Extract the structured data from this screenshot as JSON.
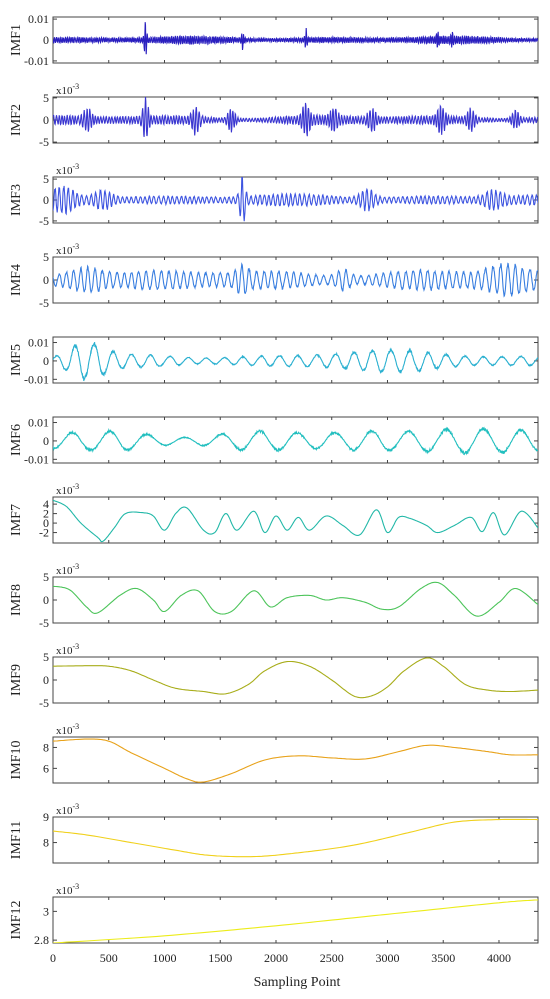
{
  "xlabel": "Sampling Point",
  "xticks": [
    0,
    500,
    1000,
    1500,
    2000,
    2500,
    3000,
    3500,
    4000
  ],
  "xlim": [
    0,
    4350
  ],
  "chart_data": [
    {
      "type": "line",
      "ylabel": "IMF1",
      "scale_label": "",
      "ylim": [
        -0.011,
        0.011
      ],
      "yticks": [
        -0.01,
        0,
        0.01
      ],
      "ytick_labels": [
        "-0.01",
        "0",
        "0.01"
      ],
      "color": "#2a1fbf",
      "signal": {
        "kind": "noise",
        "amp": 0.0017,
        "freq": 0.12,
        "bursts": [
          [
            830,
            0.0095,
            12
          ],
          [
            1700,
            0.004,
            12
          ],
          [
            2270,
            0.0048,
            12
          ],
          [
            3450,
            0.003,
            12
          ],
          [
            3580,
            0.0025,
            12
          ]
        ]
      }
    },
    {
      "type": "line",
      "ylabel": "IMF2",
      "scale_label": "x10",
      "scale_exp": "-3",
      "ylim": [
        -5.2,
        5.2
      ],
      "yticks": [
        -5,
        0,
        5
      ],
      "ytick_labels": [
        "-5",
        "0",
        "5"
      ],
      "color": "#3a36d0",
      "signal": {
        "kind": "noise",
        "amp": 1.0,
        "freq": 0.08,
        "bursts": [
          [
            830,
            4.5,
            30
          ],
          [
            310,
            2.2,
            40
          ],
          [
            1280,
            2.8,
            40
          ],
          [
            1600,
            2.6,
            40
          ],
          [
            2270,
            3.2,
            40
          ],
          [
            2520,
            2.2,
            40
          ],
          [
            2860,
            2.4,
            40
          ],
          [
            3480,
            2.8,
            40
          ],
          [
            3750,
            2.4,
            40
          ],
          [
            4150,
            2.0,
            40
          ]
        ]
      }
    },
    {
      "type": "line",
      "ylabel": "IMF3",
      "scale_label": "x10",
      "scale_exp": "-3",
      "ylim": [
        -5.5,
        5.5
      ],
      "yticks": [
        -5,
        0,
        5
      ],
      "ytick_labels": [
        "-5",
        "0",
        "5"
      ],
      "color": "#3d54e0",
      "signal": {
        "kind": "noise",
        "amp": 1.2,
        "freq": 0.05,
        "bursts": [
          [
            1700,
            5.5,
            30
          ],
          [
            100,
            2.5,
            120
          ],
          [
            450,
            2.0,
            100
          ],
          [
            2820,
            2.2,
            80
          ],
          [
            3950,
            1.8,
            100
          ]
        ]
      }
    },
    {
      "type": "line",
      "ylabel": "IMF4",
      "scale_label": "x10",
      "scale_exp": "-3",
      "ylim": [
        -5,
        5
      ],
      "yticks": [
        -5,
        0,
        5
      ],
      "ytick_labels": [
        "-5",
        "0",
        "5"
      ],
      "color": "#3a7fe0",
      "signal": {
        "kind": "noise",
        "amp": 2.0,
        "freq": 0.03,
        "bursts": [
          [
            300,
            2.2,
            200
          ],
          [
            1700,
            2.0,
            60
          ],
          [
            2600,
            1.8,
            80
          ],
          [
            4050,
            2.0,
            200
          ]
        ]
      }
    },
    {
      "type": "line",
      "ylabel": "IMF5",
      "scale_label": "",
      "ylim": [
        -0.012,
        0.013
      ],
      "yticks": [
        -0.01,
        0,
        0.01
      ],
      "ytick_labels": [
        "-0.01",
        "0",
        "0.01"
      ],
      "color": "#2ab0d0",
      "signal": {
        "kind": "noise",
        "amp": 0.003,
        "freq": 0.012,
        "bursts": [
          [
            300,
            0.009,
            200
          ],
          [
            2950,
            0.003,
            800
          ]
        ]
      }
    },
    {
      "type": "line",
      "ylabel": "IMF6",
      "scale_label": "",
      "ylim": [
        -0.012,
        0.013
      ],
      "yticks": [
        -0.01,
        0,
        0.01
      ],
      "ytick_labels": [
        "-0.01",
        "0",
        "0.01"
      ],
      "color": "#22bfbf",
      "signal": {
        "kind": "noise",
        "amp": 0.0055,
        "freq": 0.006,
        "bursts": [
          [
            3600,
            0.005,
            400
          ]
        ]
      }
    },
    {
      "type": "line",
      "ylabel": "IMF7",
      "scale_label": "x10",
      "scale_exp": "-3",
      "ylim": [
        -4.2,
        5.5
      ],
      "yticks": [
        -2,
        0,
        2,
        4
      ],
      "ytick_labels": [
        "-2",
        "0",
        "2",
        "4"
      ],
      "color": "#22b8a8",
      "signal": {
        "kind": "points",
        "points": [
          [
            0,
            4.8
          ],
          [
            120,
            3.5
          ],
          [
            250,
            0
          ],
          [
            400,
            -3
          ],
          [
            450,
            -3.8
          ],
          [
            550,
            -1
          ],
          [
            650,
            2
          ],
          [
            800,
            2.2
          ],
          [
            900,
            1.5
          ],
          [
            1000,
            -1.5
          ],
          [
            1100,
            2
          ],
          [
            1200,
            3.2
          ],
          [
            1350,
            -1.5
          ],
          [
            1450,
            -2
          ],
          [
            1550,
            2
          ],
          [
            1650,
            -1.5
          ],
          [
            1800,
            2.5
          ],
          [
            1900,
            -2
          ],
          [
            2000,
            1.5
          ],
          [
            2100,
            -1.5
          ],
          [
            2200,
            1.2
          ],
          [
            2300,
            -1.5
          ],
          [
            2450,
            1.5
          ],
          [
            2600,
            -0.5
          ],
          [
            2750,
            -2.5
          ],
          [
            2900,
            2.8
          ],
          [
            3000,
            -2
          ],
          [
            3100,
            1.2
          ],
          [
            3200,
            1.0
          ],
          [
            3350,
            -0.5
          ],
          [
            3450,
            -2
          ],
          [
            3600,
            -0.5
          ],
          [
            3750,
            1.2
          ],
          [
            3850,
            -1.8
          ],
          [
            3950,
            2.2
          ],
          [
            4050,
            -2.5
          ],
          [
            4200,
            2.5
          ],
          [
            4350,
            -1
          ]
        ]
      }
    },
    {
      "type": "line",
      "ylabel": "IMF8",
      "scale_label": "x10",
      "scale_exp": "-3",
      "ylim": [
        -5,
        5
      ],
      "yticks": [
        -5,
        0,
        5
      ],
      "ytick_labels": [
        "-5",
        "0",
        "5"
      ],
      "color": "#4cc45a",
      "signal": {
        "kind": "points",
        "points": [
          [
            0,
            3
          ],
          [
            150,
            2.2
          ],
          [
            300,
            -1.5
          ],
          [
            400,
            -2.8
          ],
          [
            600,
            1
          ],
          [
            750,
            2.5
          ],
          [
            900,
            0
          ],
          [
            1000,
            -2.5
          ],
          [
            1150,
            1
          ],
          [
            1300,
            2
          ],
          [
            1450,
            -2.5
          ],
          [
            1600,
            -2.5
          ],
          [
            1800,
            2
          ],
          [
            1950,
            -1.5
          ],
          [
            2100,
            0.5
          ],
          [
            2300,
            1
          ],
          [
            2450,
            0
          ],
          [
            2600,
            0.5
          ],
          [
            2800,
            -0.5
          ],
          [
            2950,
            -2
          ],
          [
            3100,
            -1.5
          ],
          [
            3300,
            2.5
          ],
          [
            3450,
            3.8
          ],
          [
            3600,
            1
          ],
          [
            3800,
            -3.5
          ],
          [
            4000,
            -0.5
          ],
          [
            4150,
            2.5
          ],
          [
            4350,
            -1
          ]
        ]
      }
    },
    {
      "type": "line",
      "ylabel": "IMF9",
      "scale_label": "x10",
      "scale_exp": "-3",
      "ylim": [
        -5,
        5
      ],
      "yticks": [
        -5,
        0,
        5
      ],
      "ytick_labels": [
        "-5",
        "0",
        "5"
      ],
      "color": "#a8ad1a",
      "signal": {
        "kind": "points",
        "points": [
          [
            0,
            3
          ],
          [
            300,
            3.1
          ],
          [
            500,
            3
          ],
          [
            700,
            2
          ],
          [
            900,
            0
          ],
          [
            1100,
            -1.8
          ],
          [
            1350,
            -2.5
          ],
          [
            1550,
            -3
          ],
          [
            1750,
            -1
          ],
          [
            1900,
            2
          ],
          [
            2100,
            4
          ],
          [
            2300,
            3
          ],
          [
            2500,
            0
          ],
          [
            2700,
            -3.5
          ],
          [
            2850,
            -3.5
          ],
          [
            3000,
            -1.5
          ],
          [
            3150,
            2
          ],
          [
            3350,
            4.8
          ],
          [
            3500,
            3
          ],
          [
            3700,
            -1
          ],
          [
            3900,
            -2.2
          ],
          [
            4100,
            -2.5
          ],
          [
            4350,
            -2.2
          ]
        ]
      }
    },
    {
      "type": "line",
      "ylabel": "IMF10",
      "scale_label": "x10",
      "scale_exp": "-3",
      "ylim": [
        4.6,
        9.0
      ],
      "yticks": [
        6,
        8
      ],
      "ytick_labels": [
        "6",
        "8"
      ],
      "color": "#e8a21a",
      "signal": {
        "kind": "points",
        "points": [
          [
            0,
            8.6
          ],
          [
            300,
            8.8
          ],
          [
            500,
            8.6
          ],
          [
            700,
            7.5
          ],
          [
            1000,
            6
          ],
          [
            1200,
            5
          ],
          [
            1350,
            4.7
          ],
          [
            1600,
            5.5
          ],
          [
            1900,
            6.8
          ],
          [
            2200,
            7.2
          ],
          [
            2500,
            7
          ],
          [
            2800,
            6.9
          ],
          [
            3100,
            7.6
          ],
          [
            3350,
            8.2
          ],
          [
            3600,
            8
          ],
          [
            3900,
            7.6
          ],
          [
            4100,
            7.3
          ],
          [
            4350,
            7.3
          ]
        ]
      }
    },
    {
      "type": "line",
      "ylabel": "IMF11",
      "scale_label": "x10",
      "scale_exp": "-3",
      "ylim": [
        7.2,
        9.0
      ],
      "yticks": [
        8,
        9
      ],
      "ytick_labels": [
        "8",
        "9"
      ],
      "color": "#f0d01a",
      "signal": {
        "kind": "points",
        "points": [
          [
            0,
            8.45
          ],
          [
            300,
            8.3
          ],
          [
            700,
            8.0
          ],
          [
            1100,
            7.7
          ],
          [
            1400,
            7.5
          ],
          [
            1800,
            7.45
          ],
          [
            2200,
            7.6
          ],
          [
            2700,
            7.9
          ],
          [
            3200,
            8.4
          ],
          [
            3600,
            8.8
          ],
          [
            4000,
            8.9
          ],
          [
            4350,
            8.9
          ]
        ]
      }
    },
    {
      "type": "line",
      "ylabel": "IMF12",
      "scale_label": "x10",
      "scale_exp": "-3",
      "ylim": [
        2.78,
        3.1
      ],
      "yticks": [
        2.8,
        3
      ],
      "ytick_labels": [
        "2.8",
        "3"
      ],
      "color": "#ecec1a",
      "signal": {
        "kind": "points",
        "points": [
          [
            0,
            2.78
          ],
          [
            1000,
            2.83
          ],
          [
            2000,
            2.9
          ],
          [
            3000,
            2.98
          ],
          [
            4000,
            3.06
          ],
          [
            4350,
            3.08
          ]
        ]
      }
    }
  ]
}
